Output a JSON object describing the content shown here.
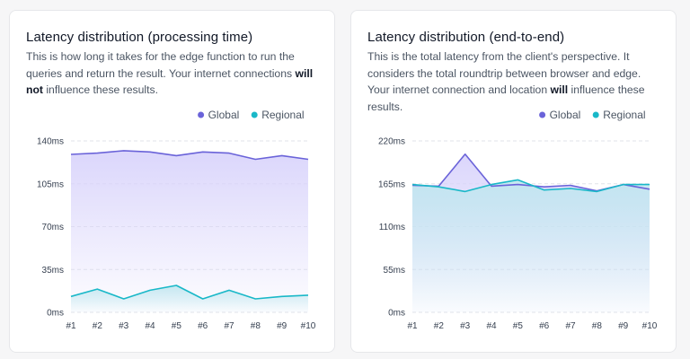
{
  "cards": [
    {
      "title": "Latency distribution (processing time)",
      "description": [
        {
          "text": "This is how long it takes for the edge function to run the queries and return the result. Your internet connections "
        },
        {
          "text": "will not",
          "bold": true
        },
        {
          "text": " influence these results."
        }
      ]
    },
    {
      "title": "Latency distribution (end-to-end)",
      "description": [
        {
          "text": "This is the total latency from the client's perspective. It considers the total roundtrip between browser and edge. Your internet connection and location "
        },
        {
          "text": "will",
          "bold": true
        },
        {
          "text": " influence these results."
        }
      ]
    }
  ],
  "colors": {
    "global": "#6a63d9",
    "regional": "#19b8c8",
    "global_fill": "#d9d4fb",
    "regional_fill": "#bfe6ef"
  },
  "chart_data": [
    {
      "type": "area",
      "x": [
        "#1",
        "#2",
        "#3",
        "#4",
        "#5",
        "#6",
        "#7",
        "#8",
        "#9",
        "#10"
      ],
      "ylim": [
        0,
        140
      ],
      "yticks": [
        0,
        35,
        70,
        105,
        140
      ],
      "ytick_labels": [
        "0ms",
        "35ms",
        "70ms",
        "105ms",
        "140ms"
      ],
      "grid": true,
      "legend": "top-right",
      "series": [
        {
          "name": "Global",
          "values": [
            129,
            130,
            132,
            131,
            128,
            131,
            130,
            125,
            128,
            125
          ]
        },
        {
          "name": "Regional",
          "values": [
            13,
            19,
            11,
            18,
            22,
            11,
            18,
            11,
            13,
            14
          ]
        }
      ]
    },
    {
      "type": "area",
      "x": [
        "#1",
        "#2",
        "#3",
        "#4",
        "#5",
        "#6",
        "#7",
        "#8",
        "#9",
        "#10"
      ],
      "ylim": [
        0,
        220
      ],
      "yticks": [
        0,
        55,
        110,
        165,
        220
      ],
      "ytick_labels": [
        "0ms",
        "55ms",
        "110ms",
        "165ms",
        "220ms"
      ],
      "grid": true,
      "legend": "top-right",
      "series": [
        {
          "name": "Global",
          "values": [
            163,
            162,
            203,
            162,
            164,
            161,
            163,
            156,
            164,
            158
          ]
        },
        {
          "name": "Regional",
          "values": [
            164,
            161,
            155,
            164,
            170,
            157,
            159,
            155,
            164,
            164
          ]
        }
      ]
    }
  ]
}
